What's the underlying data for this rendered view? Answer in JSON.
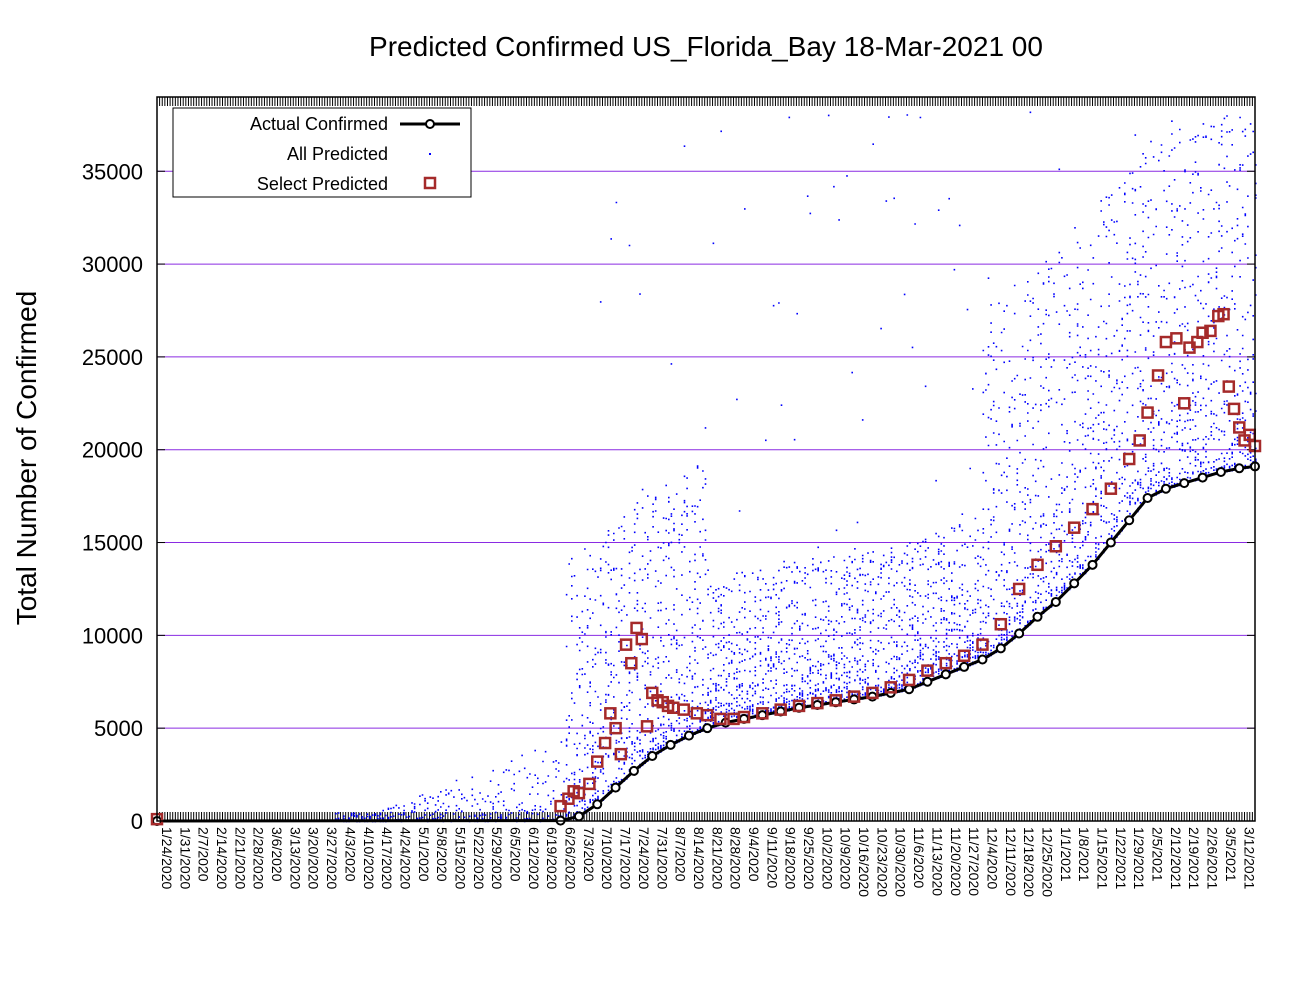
{
  "chart_data": {
    "type": "scatter",
    "title": "Predicted Confirmed US_Florida_Bay 18-Mar-2021 00",
    "xlabel": "",
    "ylabel": "Total Number of Confirmed",
    "ylim": [
      0,
      39000
    ],
    "yticks": [
      0,
      5000,
      10000,
      15000,
      20000,
      25000,
      30000,
      35000
    ],
    "xlim": [
      "1/24/2020",
      "3/18/2021"
    ],
    "x_tick_labels": [
      "1/24/2020",
      "1/31/2020",
      "2/7/2020",
      "2/14/2020",
      "2/21/2020",
      "2/28/2020",
      "3/6/2020",
      "3/13/2020",
      "3/20/2020",
      "3/27/2020",
      "4/3/2020",
      "4/10/2020",
      "4/17/2020",
      "4/24/2020",
      "5/1/2020",
      "5/8/2020",
      "5/15/2020",
      "5/22/2020",
      "5/29/2020",
      "6/5/2020",
      "6/12/2020",
      "6/19/2020",
      "6/26/2020",
      "7/3/2020",
      "7/10/2020",
      "7/17/2020",
      "7/24/2020",
      "7/31/2020",
      "8/7/2020",
      "8/14/2020",
      "8/21/2020",
      "8/28/2020",
      "9/4/2020",
      "9/11/2020",
      "9/18/2020",
      "9/25/2020",
      "10/2/2020",
      "10/9/2020",
      "10/16/2020",
      "10/23/2020",
      "10/30/2020",
      "11/6/2020",
      "11/13/2020",
      "11/20/2020",
      "11/27/2020",
      "12/4/2020",
      "12/11/2020",
      "12/18/2020",
      "12/25/2020",
      "1/1/2021",
      "1/8/2021",
      "1/15/2021",
      "1/22/2021",
      "1/29/2021",
      "2/5/2021",
      "2/12/2021",
      "2/19/2021",
      "2/26/2021",
      "3/5/2021",
      "3/12/2021"
    ],
    "grid": "horizontal",
    "legend_position": "top-left",
    "colors": {
      "actual": "#000000",
      "all_predicted": "#0000ff",
      "select_predicted": "#a52a2a",
      "grid": "#8a2be2"
    },
    "series": [
      {
        "name": "Actual Confirmed",
        "style": "line-with-circles",
        "x": [
          "1/24/2020",
          "6/26/2020",
          "7/3/2020",
          "7/10/2020",
          "7/17/2020",
          "7/24/2020",
          "7/31/2020",
          "8/7/2020",
          "8/14/2020",
          "8/21/2020",
          "8/28/2020",
          "9/4/2020",
          "9/11/2020",
          "9/18/2020",
          "9/25/2020",
          "10/2/2020",
          "10/9/2020",
          "10/16/2020",
          "10/23/2020",
          "10/30/2020",
          "11/6/2020",
          "11/13/2020",
          "11/20/2020",
          "11/27/2020",
          "12/4/2020",
          "12/11/2020",
          "12/18/2020",
          "12/25/2020",
          "1/1/2021",
          "1/8/2021",
          "1/15/2021",
          "1/22/2021",
          "1/29/2021",
          "2/5/2021",
          "2/12/2021",
          "2/19/2021",
          "2/26/2021",
          "3/5/2021",
          "3/12/2021",
          "3/18/2021"
        ],
        "y": [
          0,
          20,
          250,
          900,
          1800,
          2700,
          3500,
          4100,
          4600,
          5000,
          5300,
          5500,
          5700,
          5900,
          6100,
          6250,
          6400,
          6550,
          6700,
          6900,
          7100,
          7500,
          7900,
          8300,
          8700,
          9300,
          10100,
          11000,
          11800,
          12800,
          13800,
          15000,
          16200,
          17400,
          17900,
          18200,
          18500,
          18800,
          19000,
          19100
        ]
      },
      {
        "name": "Select Predicted",
        "style": "open-squares",
        "x": [
          "1/24/2020",
          "6/26/2020",
          "6/29/2020",
          "7/1/2020",
          "7/3/2020",
          "7/7/2020",
          "7/10/2020",
          "7/13/2020",
          "7/15/2020",
          "7/17/2020",
          "7/19/2020",
          "7/21/2020",
          "7/23/2020",
          "7/25/2020",
          "7/27/2020",
          "7/29/2020",
          "7/31/2020",
          "8/2/2020",
          "8/4/2020",
          "8/6/2020",
          "8/8/2020",
          "8/12/2020",
          "8/17/2020",
          "8/21/2020",
          "8/26/2020",
          "8/31/2020",
          "9/4/2020",
          "9/11/2020",
          "9/18/2020",
          "9/25/2020",
          "10/2/2020",
          "10/9/2020",
          "10/16/2020",
          "10/23/2020",
          "10/30/2020",
          "11/6/2020",
          "11/13/2020",
          "11/20/2020",
          "11/27/2020",
          "12/4/2020",
          "12/11/2020",
          "12/18/2020",
          "12/25/2020",
          "1/1/2021",
          "1/8/2021",
          "1/15/2021",
          "1/22/2021",
          "1/29/2021",
          "2/2/2021",
          "2/5/2021",
          "2/9/2021",
          "2/12/2021",
          "2/16/2021",
          "2/19/2021",
          "2/21/2021",
          "2/24/2021",
          "2/26/2021",
          "3/1/2021",
          "3/4/2021",
          "3/6/2021",
          "3/8/2021",
          "3/10/2021",
          "3/12/2021",
          "3/14/2021",
          "3/16/2021",
          "3/18/2021"
        ],
        "y": [
          100,
          800,
          1200,
          1600,
          1500,
          2000,
          3200,
          4200,
          5800,
          5000,
          3600,
          9500,
          8500,
          10400,
          9800,
          5100,
          6900,
          6500,
          6400,
          6200,
          6100,
          6000,
          5800,
          5700,
          5500,
          5500,
          5600,
          5800,
          6000,
          6200,
          6350,
          6500,
          6700,
          6900,
          7200,
          7600,
          8100,
          8500,
          8900,
          9500,
          10600,
          12500,
          13800,
          14800,
          15800,
          16800,
          17900,
          19500,
          20500,
          22000,
          24000,
          25800,
          26000,
          22500,
          25500,
          25800,
          26300,
          26400,
          27200,
          27300,
          23400,
          22200,
          21200,
          20500,
          20800,
          20200
        ]
      },
      {
        "name": "All Predicted",
        "style": "dots",
        "description_values": "dense cloud of forecast trajectories"
      }
    ]
  }
}
